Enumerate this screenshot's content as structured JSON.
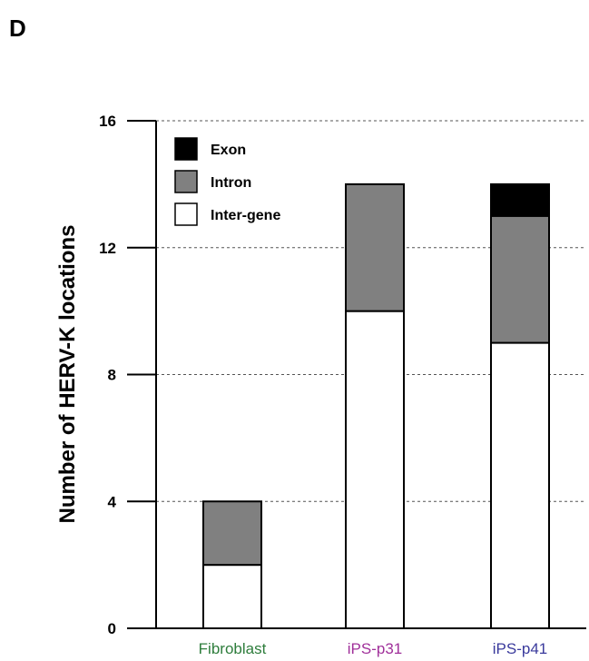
{
  "panel_label": "D",
  "chart_data": {
    "type": "bar",
    "stacked": true,
    "title": "",
    "xlabel": "",
    "ylabel": "Number of HERV-K locations",
    "ylim": [
      0,
      16
    ],
    "yticks": [
      0,
      4,
      8,
      12,
      16
    ],
    "grid": "dashed horizontal at y ticks",
    "legend_position": "top-left",
    "categories": [
      "Fibroblast",
      "iPS-p31",
      "iPS-p41"
    ],
    "category_colors": [
      "#2e7d3c",
      "#a0309a",
      "#3a3a9c"
    ],
    "series": [
      {
        "name": "Inter-gene",
        "color": "#ffffff",
        "values": [
          2,
          10,
          9
        ]
      },
      {
        "name": "Intron",
        "color": "#808080",
        "values": [
          2,
          4,
          4
        ]
      },
      {
        "name": "Exon",
        "color": "#000000",
        "values": [
          0,
          0,
          1
        ]
      }
    ],
    "legend_order": [
      "Exon",
      "Intron",
      "Inter-gene"
    ]
  }
}
